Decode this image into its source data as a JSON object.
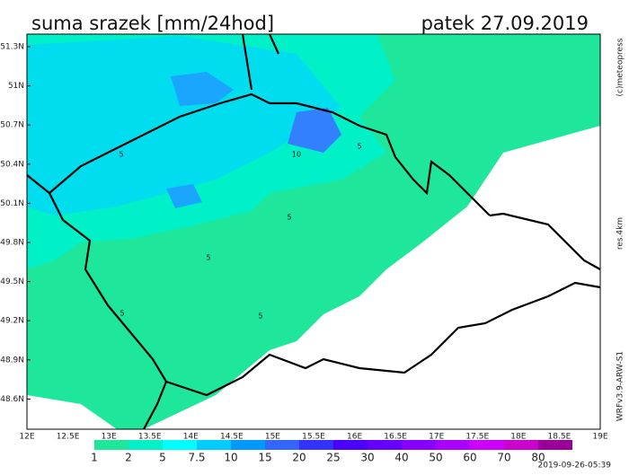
{
  "header": {
    "title": "suma srazek [mm/24hod]",
    "date": "patek 27.09.2019"
  },
  "lat_labels": [
    "51.3N",
    "51N",
    "50.7N",
    "50.4N",
    "50.1N",
    "49.8N",
    "49.5N",
    "49.2N",
    "48.9N",
    "48.6N"
  ],
  "lon_labels": [
    "12E",
    "12.5E",
    "13E",
    "13.5E",
    "14E",
    "14.5E",
    "15E",
    "15.5E",
    "16E",
    "16.5E",
    "17E",
    "17.5E",
    "18E",
    "18.5E",
    "19E"
  ],
  "contour_labels": [
    "5",
    "10",
    "5",
    "5",
    "5",
    "5",
    "5"
  ],
  "legend": {
    "labels": [
      "1",
      "2",
      "5",
      "7.5",
      "10",
      "15",
      "20",
      "25",
      "30",
      "40",
      "50",
      "60",
      "70",
      "80"
    ],
    "colors": [
      "#ffffff",
      "#1ee69b",
      "#00f0c8",
      "#00ffff",
      "#00ccff",
      "#0099ff",
      "#3366ff",
      "#3333ff",
      "#4b00ff",
      "#6600ff",
      "#8800ff",
      "#aa00ff",
      "#cc00ff",
      "#cc00cc",
      "#990099"
    ]
  },
  "side": {
    "copyright": "(c)meteopress",
    "resolution": "res.4km",
    "model": "WRFv3.9-ARW-S1"
  },
  "footer": {
    "timestamp": "2019-09-26-05:39"
  }
}
